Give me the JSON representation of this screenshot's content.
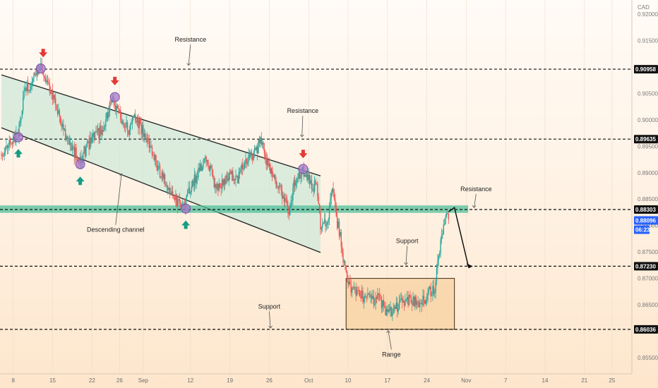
{
  "chart_data": {
    "type": "candlestick",
    "currency_label": "CAD",
    "colors": {
      "up": "#26a69a",
      "down": "#ef5350",
      "channel_fill": "#cfe8d8",
      "zone": "#4fbf9a",
      "range_fill": "#f6c98e",
      "marker": "#a779c9",
      "arrow_down": "#e53935",
      "arrow_up": "#179c84",
      "price_badge": "#111111",
      "current_badge": "#2962ff"
    },
    "y_ticks": [
      "0.92000",
      "0.91500",
      "0.90500",
      "0.90000",
      "0.89500",
      "0.89000",
      "0.88500",
      "0.88000",
      "0.87500",
      "0.87000",
      "0.86500",
      "0.85500"
    ],
    "y_tick_values": [
      0.92,
      0.915,
      0.905,
      0.9,
      0.895,
      0.89,
      0.885,
      0.88,
      0.875,
      0.87,
      0.865,
      0.855
    ],
    "x_ticks": [
      "8",
      "15",
      "22",
      "26",
      "Sep",
      "12",
      "19",
      "26",
      "Oct",
      "10",
      "17",
      "24",
      "Nov",
      "7",
      "14",
      "21",
      "25"
    ],
    "x_tick_index": [
      3,
      13,
      23,
      30,
      36,
      48,
      58,
      68,
      78,
      88,
      98,
      108,
      118,
      128,
      138,
      148,
      155
    ],
    "price_labels": [
      {
        "text": "0.90958",
        "value": 0.90958,
        "kind": "level"
      },
      {
        "text": "0.89635",
        "value": 0.89635,
        "kind": "level"
      },
      {
        "text": "0.88303",
        "value": 0.88303,
        "kind": "level"
      },
      {
        "text": "0.87230",
        "value": 0.8723,
        "kind": "level"
      },
      {
        "text": "0.86036",
        "value": 0.86036,
        "kind": "level"
      },
      {
        "text": "0.88096",
        "value": 0.88096,
        "kind": "current"
      },
      {
        "text": "06:23",
        "value": 0.8792,
        "kind": "timer"
      }
    ],
    "horizontal_levels": [
      0.90958,
      0.89635,
      0.88303,
      0.8723,
      0.86036
    ],
    "resistance_zone": [
      0.8824,
      0.8838
    ],
    "channel": {
      "upper": [
        [
          0,
          0.9085
        ],
        [
          81,
          0.8894
        ]
      ],
      "lower": [
        [
          0,
          0.8985
        ],
        [
          81,
          0.8749
        ]
      ]
    },
    "range_box": {
      "x": [
        87.5,
        115
      ],
      "y": [
        0.86036,
        0.87
      ]
    },
    "projection": [
      [
        113.5,
        0.8826
      ],
      [
        115,
        0.8834
      ],
      [
        118.5,
        0.8724
      ]
    ],
    "projection_arrow_tip": [
      119.5,
      0.8723
    ],
    "annotations": [
      {
        "text": "Resistance",
        "x": 48,
        "y": 0.9148,
        "pointer": [
          47.5,
          0.9103
        ]
      },
      {
        "text": "Resistance",
        "x": 76.5,
        "y": 0.9013,
        "pointer": [
          76.3,
          0.8968
        ]
      },
      {
        "text": "Resistance",
        "x": 120.5,
        "y": 0.8865,
        "pointer": [
          120,
          0.8834
        ]
      },
      {
        "text": "Descending channel",
        "x": 29,
        "y": 0.8788,
        "pointer": [
          30.5,
          0.8898
        ]
      },
      {
        "text": "Support",
        "x": 103,
        "y": 0.8767,
        "pointer": [
          102.7,
          0.8726
        ]
      },
      {
        "text": "Support",
        "x": 68,
        "y": 0.8643,
        "pointer": [
          68.3,
          0.8606
        ]
      },
      {
        "text": "Range",
        "x": 99,
        "y": 0.8552,
        "pointer": [
          98.2,
          0.8601
        ]
      }
    ],
    "markers": [
      {
        "x": 4.3,
        "y": 0.8967
      },
      {
        "x": 10,
        "y": 0.9097
      },
      {
        "x": 20,
        "y": 0.8916
      },
      {
        "x": 28.8,
        "y": 0.9043
      },
      {
        "x": 46.8,
        "y": 0.8832
      },
      {
        "x": 76.6,
        "y": 0.8907
      }
    ],
    "down_arrows": [
      {
        "x": 10.6,
        "y": 0.9125
      },
      {
        "x": 28.8,
        "y": 0.9072
      },
      {
        "x": 76.6,
        "y": 0.8934
      }
    ],
    "up_arrows": [
      {
        "x": 4.3,
        "y": 0.8938
      },
      {
        "x": 20,
        "y": 0.8886
      },
      {
        "x": 46.8,
        "y": 0.8803
      }
    ],
    "anchors": [
      [
        0,
        0.8935
      ],
      [
        2,
        0.8955
      ],
      [
        4,
        0.8968
      ],
      [
        6,
        0.9055
      ],
      [
        9,
        0.9085
      ],
      [
        10,
        0.9098
      ],
      [
        12,
        0.906
      ],
      [
        14,
        0.9025
      ],
      [
        16,
        0.8975
      ],
      [
        18,
        0.8945
      ],
      [
        20,
        0.8925
      ],
      [
        23,
        0.8965
      ],
      [
        26,
        0.8985
      ],
      [
        28,
        0.904
      ],
      [
        30,
        0.901
      ],
      [
        32,
        0.898
      ],
      [
        34,
        0.9005
      ],
      [
        36,
        0.8975
      ],
      [
        38,
        0.8945
      ],
      [
        40,
        0.8905
      ],
      [
        42,
        0.8875
      ],
      [
        44,
        0.885
      ],
      [
        46,
        0.8835
      ],
      [
        48,
        0.887
      ],
      [
        50,
        0.8905
      ],
      [
        52,
        0.8925
      ],
      [
        54,
        0.888
      ],
      [
        56,
        0.8875
      ],
      [
        58,
        0.8895
      ],
      [
        60,
        0.889
      ],
      [
        62,
        0.892
      ],
      [
        64,
        0.8935
      ],
      [
        66,
        0.896
      ],
      [
        68,
        0.8905
      ],
      [
        70,
        0.8875
      ],
      [
        72,
        0.885
      ],
      [
        73,
        0.8815
      ],
      [
        74,
        0.887
      ],
      [
        76,
        0.8905
      ],
      [
        78,
        0.8885
      ],
      [
        80,
        0.887
      ],
      [
        81,
        0.88
      ],
      [
        83,
        0.881
      ],
      [
        84,
        0.887
      ],
      [
        85,
        0.8815
      ],
      [
        86,
        0.878
      ],
      [
        87,
        0.8725
      ],
      [
        88,
        0.869
      ],
      [
        90,
        0.867
      ],
      [
        92,
        0.8665
      ],
      [
        94,
        0.8662
      ],
      [
        96,
        0.866
      ],
      [
        98,
        0.863
      ],
      [
        100,
        0.8645
      ],
      [
        102,
        0.8655
      ],
      [
        104,
        0.866
      ],
      [
        106,
        0.865
      ],
      [
        108,
        0.8665
      ],
      [
        110,
        0.8685
      ],
      [
        111,
        0.874
      ],
      [
        112,
        0.879
      ],
      [
        113,
        0.8815
      ],
      [
        113.5,
        0.881
      ]
    ],
    "x_index_range": [
      0,
      157
    ],
    "ylim": [
      0.8525,
      0.9225
    ]
  }
}
